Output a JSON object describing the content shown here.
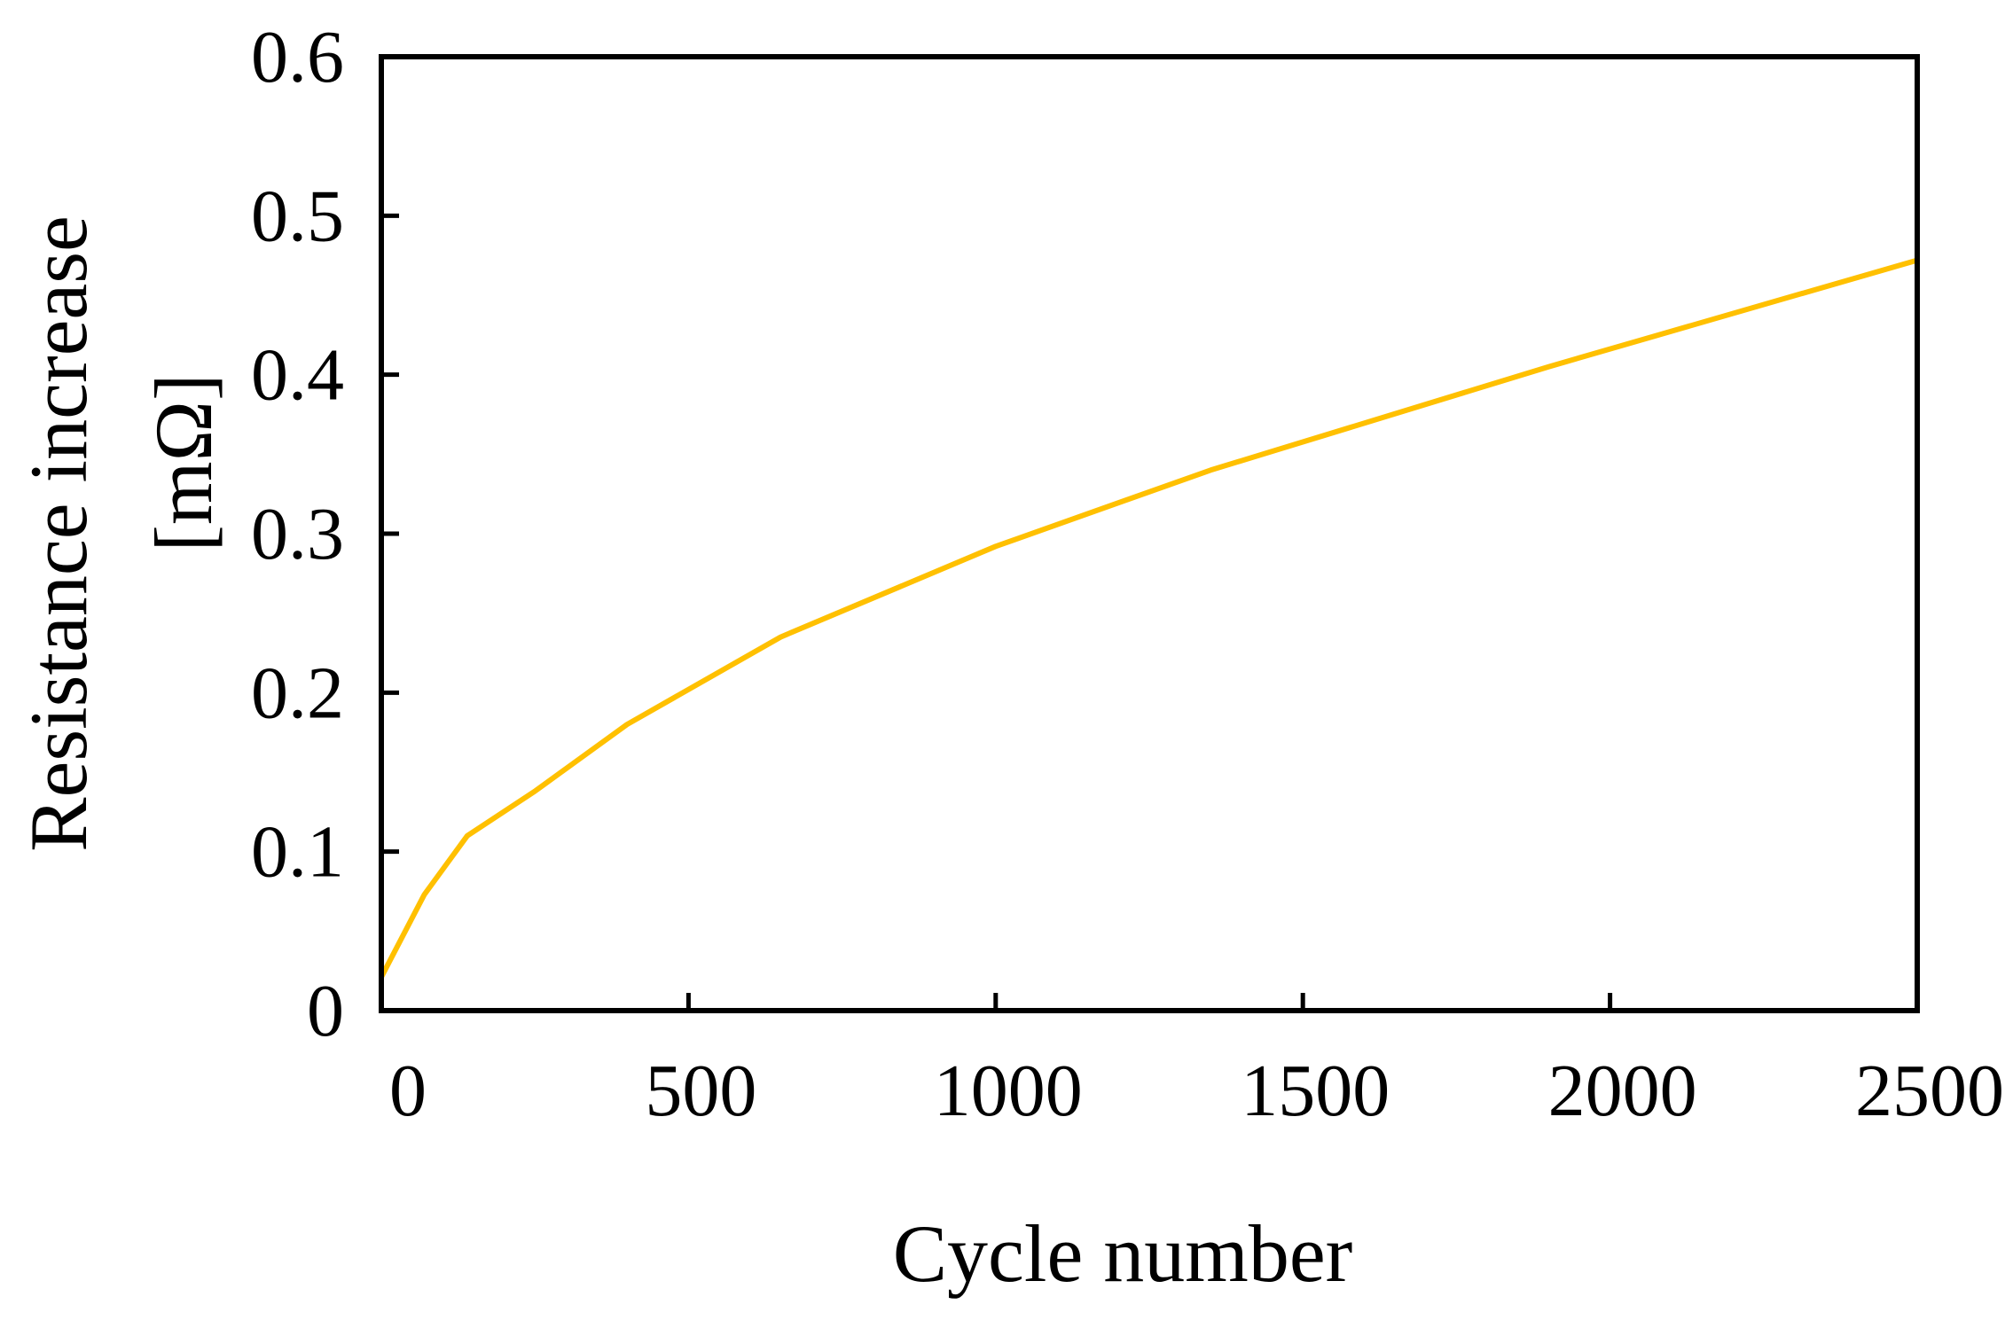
{
  "chart_data": {
    "type": "line",
    "title": "",
    "xlabel": "Cycle number",
    "ylabel_line1": "Resistance increase",
    "ylabel_line2": "[mΩ]",
    "xlim": [
      0,
      2500
    ],
    "ylim": [
      0,
      0.6
    ],
    "x_ticks": [
      0,
      500,
      1000,
      1500,
      2000,
      2500
    ],
    "x_tick_labels": [
      "0",
      "500",
      "1000",
      "1500",
      "2000",
      "2500"
    ],
    "y_ticks": [
      0,
      0.1,
      0.2,
      0.3,
      0.4,
      0.5,
      0.6
    ],
    "y_tick_labels": [
      "0",
      "0.1",
      "0.2",
      "0.3",
      "0.4",
      "0.5",
      "0.6"
    ],
    "grid": false,
    "series": [
      {
        "name": "Resistance increase",
        "color": "#FFC000",
        "x": [
          0,
          70,
          140,
          250,
          400,
          650,
          1000,
          1350,
          1900,
          2500
        ],
        "y": [
          0.021,
          0.073,
          0.11,
          0.138,
          0.18,
          0.235,
          0.292,
          0.34,
          0.405,
          0.472
        ]
      }
    ]
  }
}
